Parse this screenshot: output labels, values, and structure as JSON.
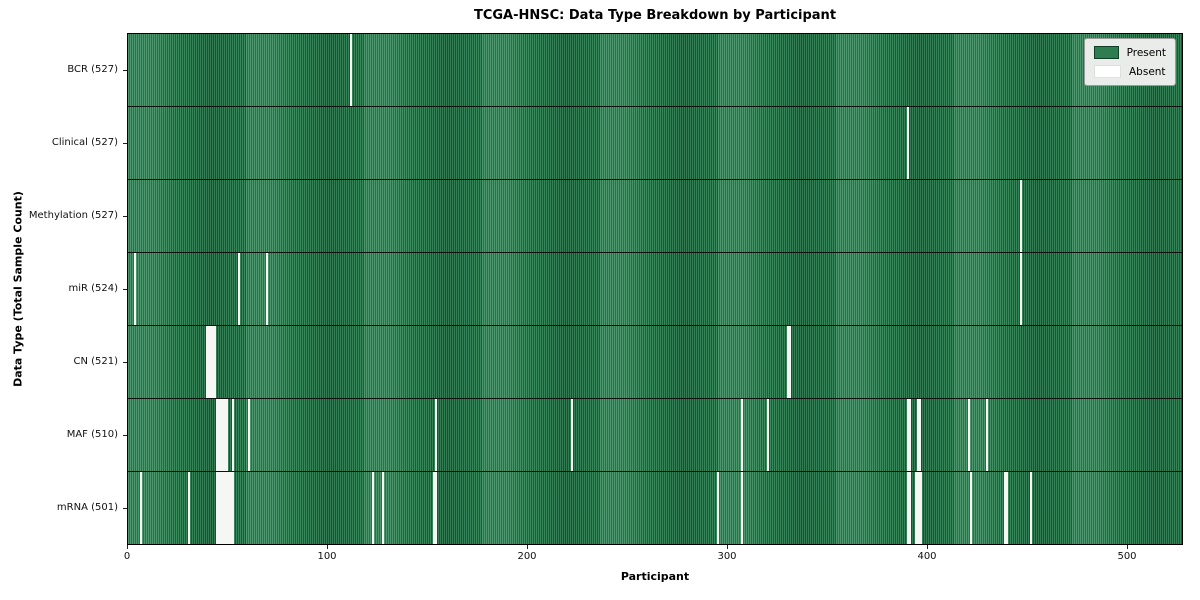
{
  "chart_data": {
    "type": "heatmap",
    "title": "TCGA-HNSC: Data Type Breakdown by Participant",
    "xlabel": "Participant",
    "ylabel": "Data Type (Total Sample Count)",
    "x_ticks": [
      0,
      100,
      200,
      300,
      400,
      500
    ],
    "x_range": [
      0,
      528
    ],
    "n_participants": 528,
    "legend": [
      {
        "label": "Present",
        "color": "#2e7d50"
      },
      {
        "label": "Absent",
        "color": "#f6f6f4"
      }
    ],
    "colors": {
      "present_base": "#2e7d50",
      "present_light": "#3a8a5d",
      "present_dark": "#1f5a3a",
      "absent": "#f6f6f4",
      "legend_bg": "#e9ece9"
    },
    "rows": [
      {
        "label": "BCR (527)",
        "count": 527,
        "absent": [
          111
        ]
      },
      {
        "label": "Clinical (527)",
        "count": 527,
        "absent": [
          390
        ]
      },
      {
        "label": "Methylation (527)",
        "count": 527,
        "absent": [
          447
        ]
      },
      {
        "label": "miR (524)",
        "count": 524,
        "absent": [
          3,
          55,
          69,
          447
        ]
      },
      {
        "label": "CN (521)",
        "count": 521,
        "absent": [
          39,
          40,
          41,
          42,
          43,
          330,
          331
        ]
      },
      {
        "label": "MAF (510)",
        "count": 510,
        "absent": [
          44,
          45,
          46,
          47,
          48,
          49,
          52,
          60,
          154,
          222,
          307,
          320,
          390,
          391,
          395,
          396,
          421,
          430
        ]
      },
      {
        "label": "mRNA (501)",
        "count": 501,
        "absent": [
          6,
          30,
          44,
          45,
          46,
          47,
          48,
          49,
          50,
          51,
          52,
          122,
          127,
          153,
          154,
          295,
          307,
          390,
          391,
          394,
          395,
          396,
          397,
          422,
          439,
          440,
          452
        ]
      }
    ]
  }
}
